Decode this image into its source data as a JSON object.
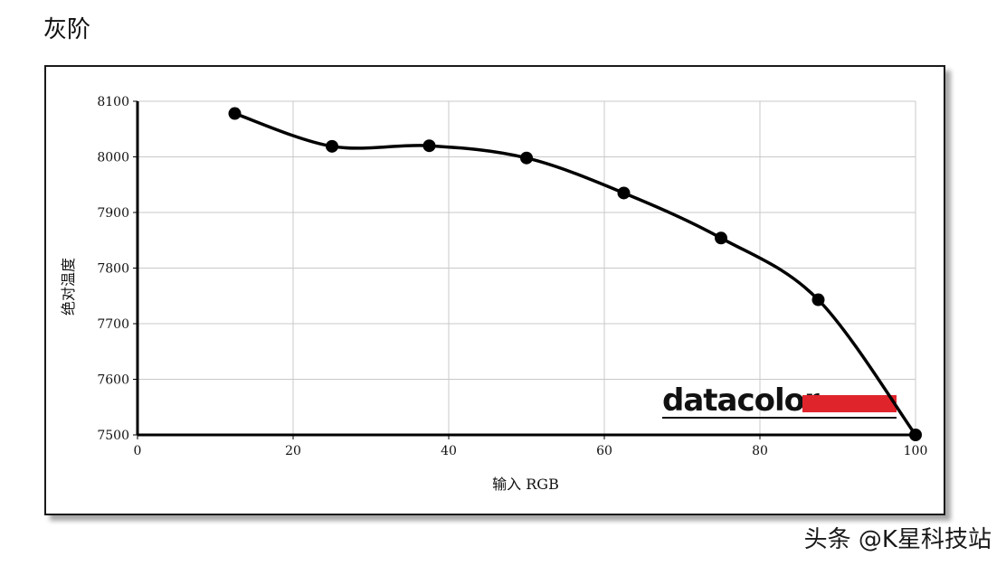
{
  "heading": "灰阶",
  "watermark": "头条 @K星科技站",
  "logo": {
    "text": "datacolor",
    "accent_color": "#e0242c"
  },
  "colors": {
    "line": "#000000",
    "grid": "#c8c8c8",
    "marker": "#000000"
  },
  "chart_data": {
    "type": "line",
    "title": "",
    "xlabel": "输入 RGB",
    "ylabel": "绝对温度",
    "xlim": [
      0,
      100
    ],
    "ylim": [
      7500,
      8100
    ],
    "xticks": [
      0,
      20,
      40,
      60,
      80,
      100
    ],
    "yticks": [
      7500,
      7600,
      7700,
      7800,
      7900,
      8000,
      8100
    ],
    "grid": true,
    "series": [
      {
        "x": [
          12.5,
          25,
          37.5,
          50,
          62.5,
          75,
          87.5,
          100
        ],
        "y": [
          8078,
          8019,
          8020,
          7998,
          7935,
          7854,
          7743,
          7500
        ]
      }
    ]
  }
}
